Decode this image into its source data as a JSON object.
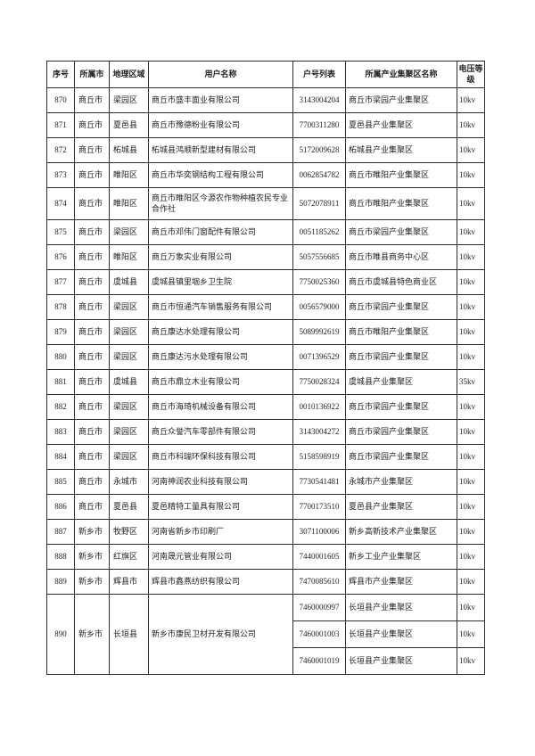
{
  "table": {
    "headers": [
      "序号",
      "所属市",
      "地理区域",
      "用户名称",
      "户号列表",
      "所属产业集聚区名称",
      "电压等级"
    ],
    "rows": [
      {
        "seq": "870",
        "city": "商丘市",
        "region": "梁园区",
        "user": "商丘市盛丰面业有限公司",
        "accounts": [
          {
            "no": "3143004204",
            "cluster": "商丘市梁园产业集聚区",
            "voltage": "10kv"
          }
        ]
      },
      {
        "seq": "871",
        "city": "商丘市",
        "region": "夏邑县",
        "user": "商丘市豫德粉业有限公司",
        "accounts": [
          {
            "no": "7700311280",
            "cluster": "夏邑县产业集聚区",
            "voltage": "10kv"
          }
        ]
      },
      {
        "seq": "872",
        "city": "商丘市",
        "region": "柘城县",
        "user": "柘城县鸿顺新型建材有限公司",
        "accounts": [
          {
            "no": "5172009628",
            "cluster": "柘城县产业集聚区",
            "voltage": "10kv"
          }
        ]
      },
      {
        "seq": "873",
        "city": "商丘市",
        "region": "睢阳区",
        "user": "商丘市华奕钢结构工程有限公司",
        "accounts": [
          {
            "no": "0062854782",
            "cluster": "商丘市睢阳产业集聚区",
            "voltage": "10kv"
          }
        ]
      },
      {
        "seq": "874",
        "city": "商丘市",
        "region": "睢阳区",
        "user": "商丘市睢阳区今源农作物种植农民专业合作社",
        "accounts": [
          {
            "no": "5072078911",
            "cluster": "商丘市睢阳产业集聚区",
            "voltage": "10kv"
          }
        ]
      },
      {
        "seq": "875",
        "city": "商丘市",
        "region": "梁园区",
        "user": "商丘市邓伟门窗配件有限公司",
        "accounts": [
          {
            "no": "0051185262",
            "cluster": "商丘市梁园产业集聚区",
            "voltage": "10kv"
          }
        ]
      },
      {
        "seq": "876",
        "city": "商丘市",
        "region": "睢阳区",
        "user": "商丘万象实业有限公司",
        "accounts": [
          {
            "no": "5057556685",
            "cluster": "商丘市睢县商务中心区",
            "voltage": "10kv"
          }
        ]
      },
      {
        "seq": "877",
        "city": "商丘市",
        "region": "虞城县",
        "user": "虞城县镇里堌乡卫生院",
        "accounts": [
          {
            "no": "7750025360",
            "cluster": "商丘市虞城县特色商业区",
            "voltage": "10kv"
          }
        ]
      },
      {
        "seq": "878",
        "city": "商丘市",
        "region": "梁园区",
        "user": "商丘市恒通汽车销售服务有限公司",
        "accounts": [
          {
            "no": "0056579000",
            "cluster": "商丘市梁园产业集聚区",
            "voltage": "10kv"
          }
        ]
      },
      {
        "seq": "879",
        "city": "商丘市",
        "region": "梁园区",
        "user": "商丘康达水处理有限公司",
        "accounts": [
          {
            "no": "5089992619",
            "cluster": "商丘市睢阳产业集聚区",
            "voltage": "10kv"
          }
        ]
      },
      {
        "seq": "880",
        "city": "商丘市",
        "region": "梁园区",
        "user": "商丘康达污水处理有限公司",
        "accounts": [
          {
            "no": "0071396529",
            "cluster": "商丘市梁园产业集聚区",
            "voltage": "10kv"
          }
        ]
      },
      {
        "seq": "881",
        "city": "商丘市",
        "region": "虞城县",
        "user": "商丘市鼎立木业有限公司",
        "accounts": [
          {
            "no": "7750028324",
            "cluster": "虞城县产业集聚区",
            "voltage": "35kv"
          }
        ]
      },
      {
        "seq": "882",
        "city": "商丘市",
        "region": "梁园区",
        "user": "商丘市海琦机械设备有限公司",
        "accounts": [
          {
            "no": "0010136922",
            "cluster": "商丘市梁园产业集聚区",
            "voltage": "10kv"
          }
        ]
      },
      {
        "seq": "883",
        "city": "商丘市",
        "region": "梁园区",
        "user": "商丘众誉汽车零部件有限公司",
        "accounts": [
          {
            "no": "3143004272",
            "cluster": "商丘市梁园产业集聚区",
            "voltage": "10kv"
          }
        ]
      },
      {
        "seq": "884",
        "city": "商丘市",
        "region": "梁园区",
        "user": "商丘市科瑞环保科技有限公司",
        "accounts": [
          {
            "no": "5158598919",
            "cluster": "商丘市梁园产业集聚区",
            "voltage": "10kv"
          }
        ]
      },
      {
        "seq": "885",
        "city": "商丘市",
        "region": "永城市",
        "user": "河南神润农业科技有限公司",
        "accounts": [
          {
            "no": "7730541481",
            "cluster": "永城市产业集聚区",
            "voltage": "10kv"
          }
        ]
      },
      {
        "seq": "886",
        "city": "商丘市",
        "region": "夏邑县",
        "user": "夏邑精特工量具有限公司",
        "accounts": [
          {
            "no": "7700173510",
            "cluster": "夏邑县产业集聚区",
            "voltage": "10kv"
          }
        ]
      },
      {
        "seq": "887",
        "city": "新乡市",
        "region": "牧野区",
        "user": "河南省新乡市印刷厂",
        "accounts": [
          {
            "no": "3071100006",
            "cluster": "新乡高新技术产业集聚区",
            "voltage": "10kv"
          }
        ]
      },
      {
        "seq": "888",
        "city": "新乡市",
        "region": "红旗区",
        "user": "河南晟元管业有限公司",
        "accounts": [
          {
            "no": "7440001605",
            "cluster": "新乡工业产业集聚区",
            "voltage": "10kv"
          }
        ]
      },
      {
        "seq": "889",
        "city": "新乡市",
        "region": "辉县市",
        "user": "辉县市鑫燕纺织有限公司",
        "accounts": [
          {
            "no": "7470085610",
            "cluster": "辉县市产业集聚区",
            "voltage": "10kv"
          }
        ]
      },
      {
        "seq": "890",
        "city": "新乡市",
        "region": "长垣县",
        "user": "新乡市康民卫材开发有限公司",
        "accounts": [
          {
            "no": "7460000997",
            "cluster": "长垣县产业集聚区",
            "voltage": "10kv"
          },
          {
            "no": "7460001003",
            "cluster": "长垣县产业集聚区",
            "voltage": "10kv"
          },
          {
            "no": "7460001019",
            "cluster": "长垣县产业集聚区",
            "voltage": "10kv"
          }
        ]
      }
    ]
  }
}
